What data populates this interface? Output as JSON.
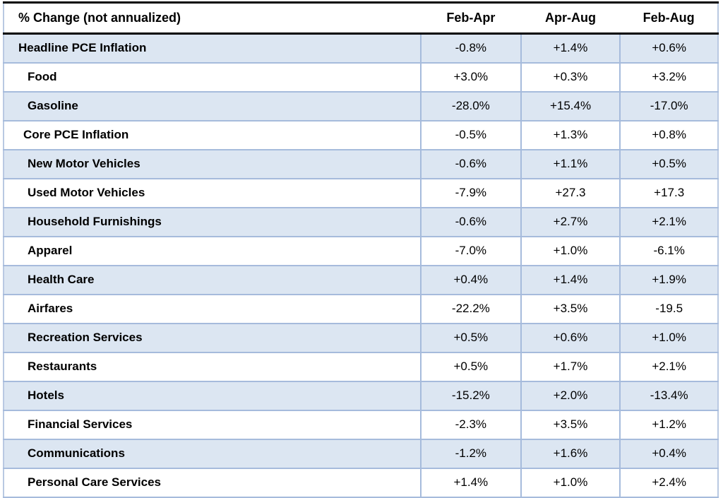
{
  "table": {
    "corner_label": "% Change (not annualized)",
    "columns": [
      "Feb-Apr",
      "Apr-Aug",
      "Feb-Aug"
    ],
    "rows": [
      {
        "label": "Headline PCE Inflation",
        "indent": 0,
        "shaded": true,
        "values": [
          "-0.8%",
          "+1.4%",
          "+0.6%"
        ]
      },
      {
        "label": "Food",
        "indent": 2,
        "shaded": false,
        "values": [
          "+3.0%",
          "+0.3%",
          "+3.2%"
        ]
      },
      {
        "label": "Gasoline",
        "indent": 2,
        "shaded": true,
        "values": [
          "-28.0%",
          "+15.4%",
          "-17.0%"
        ]
      },
      {
        "label": "Core PCE Inflation",
        "indent": 1,
        "shaded": false,
        "values": [
          "-0.5%",
          "+1.3%",
          "+0.8%"
        ]
      },
      {
        "label": "New Motor Vehicles",
        "indent": 2,
        "shaded": true,
        "values": [
          "-0.6%",
          "+1.1%",
          "+0.5%"
        ]
      },
      {
        "label": "Used Motor Vehicles",
        "indent": 2,
        "shaded": false,
        "values": [
          "-7.9%",
          "+27.3",
          "+17.3"
        ]
      },
      {
        "label": "Household Furnishings",
        "indent": 2,
        "shaded": true,
        "values": [
          "-0.6%",
          "+2.7%",
          "+2.1%"
        ]
      },
      {
        "label": "Apparel",
        "indent": 2,
        "shaded": false,
        "values": [
          "-7.0%",
          "+1.0%",
          "-6.1%"
        ]
      },
      {
        "label": "Health Care",
        "indent": 2,
        "shaded": true,
        "values": [
          "+0.4%",
          "+1.4%",
          "+1.9%"
        ]
      },
      {
        "label": "Airfares",
        "indent": 2,
        "shaded": false,
        "values": [
          "-22.2%",
          "+3.5%",
          "-19.5"
        ]
      },
      {
        "label": "Recreation Services",
        "indent": 2,
        "shaded": true,
        "values": [
          "+0.5%",
          "+0.6%",
          "+1.0%"
        ]
      },
      {
        "label": "Restaurants",
        "indent": 2,
        "shaded": false,
        "values": [
          "+0.5%",
          "+1.7%",
          "+2.1%"
        ]
      },
      {
        "label": "Hotels",
        "indent": 2,
        "shaded": true,
        "values": [
          "-15.2%",
          "+2.0%",
          "-13.4%"
        ]
      },
      {
        "label": "Financial Services",
        "indent": 2,
        "shaded": false,
        "values": [
          "-2.3%",
          "+3.5%",
          "+1.2%"
        ]
      },
      {
        "label": "Communications",
        "indent": 2,
        "shaded": true,
        "values": [
          "-1.2%",
          "+1.6%",
          "+0.4%"
        ]
      },
      {
        "label": "Personal Care Services",
        "indent": 2,
        "shaded": false,
        "values": [
          "+1.4%",
          "+1.0%",
          "+2.4%"
        ]
      }
    ]
  },
  "chart_data": {
    "type": "table",
    "title": "% Change (not annualized)",
    "columns": [
      "Feb-Apr",
      "Apr-Aug",
      "Feb-Aug"
    ],
    "row_labels": [
      "Headline PCE Inflation",
      "Food",
      "Gasoline",
      "Core PCE Inflation",
      "New Motor Vehicles",
      "Used Motor Vehicles",
      "Household Furnishings",
      "Apparel",
      "Health Care",
      "Airfares",
      "Recreation Services",
      "Restaurants",
      "Hotels",
      "Financial Services",
      "Communications",
      "Personal Care Services"
    ],
    "cells": [
      [
        "-0.8%",
        "+1.4%",
        "+0.6%"
      ],
      [
        "+3.0%",
        "+0.3%",
        "+3.2%"
      ],
      [
        "-28.0%",
        "+15.4%",
        "-17.0%"
      ],
      [
        "-0.5%",
        "+1.3%",
        "+0.8%"
      ],
      [
        "-0.6%",
        "+1.1%",
        "+0.5%"
      ],
      [
        "-7.9%",
        "+27.3",
        "+17.3"
      ],
      [
        "-0.6%",
        "+2.7%",
        "+2.1%"
      ],
      [
        "-7.0%",
        "+1.0%",
        "-6.1%"
      ],
      [
        "+0.4%",
        "+1.4%",
        "+1.9%"
      ],
      [
        "-22.2%",
        "+3.5%",
        "-19.5"
      ],
      [
        "+0.5%",
        "+0.6%",
        "+1.0%"
      ],
      [
        "+0.5%",
        "+1.7%",
        "+2.1%"
      ],
      [
        "-15.2%",
        "+2.0%",
        "-13.4%"
      ],
      [
        "-2.3%",
        "+3.5%",
        "+1.2%"
      ],
      [
        "-1.2%",
        "+1.6%",
        "+0.4%"
      ],
      [
        "+1.4%",
        "+1.0%",
        "+2.4%"
      ]
    ],
    "numeric_values": [
      [
        -0.8,
        1.4,
        0.6
      ],
      [
        3.0,
        0.3,
        3.2
      ],
      [
        -28.0,
        15.4,
        -17.0
      ],
      [
        -0.5,
        1.3,
        0.8
      ],
      [
        -0.6,
        1.1,
        0.5
      ],
      [
        -7.9,
        27.3,
        17.3
      ],
      [
        -0.6,
        2.7,
        2.1
      ],
      [
        -7.0,
        1.0,
        -6.1
      ],
      [
        0.4,
        1.4,
        1.9
      ],
      [
        -22.2,
        3.5,
        -19.5
      ],
      [
        0.5,
        0.6,
        1.0
      ],
      [
        0.5,
        1.7,
        2.1
      ],
      [
        -15.2,
        2.0,
        -13.4
      ],
      [
        -2.3,
        3.5,
        1.2
      ],
      [
        -1.2,
        1.6,
        0.4
      ],
      [
        1.4,
        1.0,
        2.4
      ]
    ]
  },
  "colors": {
    "row_shade": "#dce6f2",
    "grid_line": "#a6bbdc",
    "header_line": "#000000",
    "text": "#000000"
  }
}
